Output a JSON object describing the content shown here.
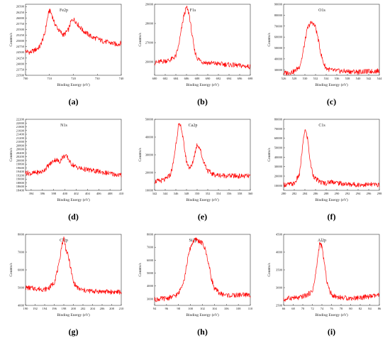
{
  "colors": {
    "line": "#ff0000",
    "axis": "#333333"
  },
  "chart_data": [
    {
      "id": "a",
      "panel_label": "(a)",
      "type": "line",
      "title": "Fe2p",
      "xlabel": "Binding Energy (eV)",
      "ylabel": "Counts/s",
      "xlim": [
        700,
        740
      ],
      "ylim": [
        23500,
        26600
      ],
      "xticks": [
        700,
        710,
        720,
        730,
        740
      ],
      "yticks": [
        23500,
        23750,
        24000,
        24250,
        24500,
        24750,
        25000,
        25250,
        25500,
        25750,
        26000,
        26250,
        26500
      ],
      "series": [
        {
          "x": [
            700,
            702,
            704,
            706,
            708,
            709,
            710,
            711,
            712,
            714,
            716,
            718,
            719,
            720,
            721,
            722,
            724,
            726,
            728,
            730,
            732,
            734,
            736,
            738,
            740
          ],
          "values": [
            24550,
            24500,
            24600,
            24750,
            25300,
            25900,
            26350,
            26150,
            25800,
            25450,
            25250,
            25500,
            25850,
            25950,
            25850,
            25700,
            25450,
            25300,
            25150,
            25100,
            25000,
            24950,
            24900,
            24850,
            24900
          ]
        }
      ]
    },
    {
      "id": "b",
      "panel_label": "(b)",
      "type": "line",
      "title": "F1s",
      "xlabel": "Binding Energy (eV)",
      "ylabel": "Counts/s",
      "xlim": [
        680,
        698
      ],
      "ylim": [
        25300,
        29000
      ],
      "xticks": [
        680,
        682,
        684,
        686,
        688,
        690,
        692,
        694,
        696,
        698
      ],
      "yticks": [
        26000,
        27000,
        28000,
        29000
      ],
      "series": [
        {
          "x": [
            680,
            681,
            682,
            683,
            684,
            684.5,
            685,
            685.5,
            686,
            686.5,
            687,
            687.5,
            688,
            689,
            690,
            692,
            694,
            696,
            698
          ],
          "values": [
            25950,
            26000,
            26050,
            26100,
            26300,
            26800,
            27600,
            28400,
            28850,
            28500,
            27500,
            26600,
            26200,
            26000,
            25950,
            25900,
            25850,
            25800,
            25750
          ]
        }
      ]
    },
    {
      "id": "c",
      "panel_label": "(c)",
      "type": "line",
      "title": "O1s",
      "xlabel": "Binding Energy (eV)",
      "ylabel": "Counts/s",
      "xlim": [
        526,
        544
      ],
      "ylim": [
        25000,
        90000
      ],
      "xticks": [
        526,
        528,
        530,
        532,
        534,
        536,
        538,
        540,
        542,
        544
      ],
      "yticks": [
        30000,
        40000,
        50000,
        60000,
        70000,
        80000,
        90000
      ],
      "series": [
        {
          "x": [
            526,
            527,
            528,
            529,
            529.5,
            530,
            530.5,
            531,
            531.5,
            532,
            532.5,
            533,
            533.5,
            534,
            535,
            536,
            538,
            540,
            542,
            544
          ],
          "values": [
            27000,
            27500,
            28500,
            33000,
            42000,
            56000,
            68000,
            72500,
            73000,
            69000,
            58000,
            45000,
            36000,
            31500,
            29500,
            29000,
            28500,
            28200,
            28500,
            29000
          ]
        }
      ]
    },
    {
      "id": "d",
      "panel_label": "(d)",
      "type": "line",
      "title": "N1s",
      "xlabel": "Binding Energy (eV)",
      "ylabel": "Counts/s",
      "xlim": [
        393,
        410
      ],
      "ylim": [
        18400,
        22200
      ],
      "xticks": [
        394,
        396,
        398,
        400,
        402,
        404,
        406,
        408,
        410
      ],
      "yticks": [
        18400,
        18600,
        18800,
        19000,
        19200,
        19400,
        19600,
        19800,
        20000,
        20200,
        20400,
        20600,
        20800,
        21000,
        21200,
        21400,
        21600,
        21800,
        22000,
        22200
      ],
      "series": [
        {
          "x": [
            393,
            394,
            395,
            396,
            397,
            398,
            398.5,
            399,
            399.5,
            400,
            400.5,
            401,
            402,
            403,
            404,
            405,
            406,
            407,
            408,
            409,
            410
          ],
          "values": [
            19350,
            19300,
            19350,
            19400,
            19700,
            20000,
            20050,
            19900,
            20150,
            20250,
            20150,
            19850,
            19650,
            19550,
            19500,
            19450,
            19400,
            19350,
            19300,
            19250,
            19200
          ]
        }
      ]
    },
    {
      "id": "e",
      "panel_label": "(e)",
      "type": "line",
      "title": "Ca2p",
      "xlabel": "Binding Energy (eV)",
      "ylabel": "Counts/s",
      "xlim": [
        342,
        360
      ],
      "ylim": [
        10000,
        50000
      ],
      "xticks": [
        342,
        344,
        346,
        348,
        350,
        352,
        354,
        356,
        358,
        360
      ],
      "yticks": [
        10000,
        20000,
        30000,
        40000,
        50000
      ],
      "series": [
        {
          "x": [
            342,
            343,
            344,
            345,
            345.5,
            346,
            346.5,
            347,
            347.5,
            348,
            348.5,
            349,
            349.5,
            350,
            350.5,
            351,
            352,
            353,
            354,
            356,
            358,
            360
          ],
          "values": [
            15000,
            15300,
            16000,
            19000,
            25000,
            36000,
            46500,
            46000,
            36000,
            26000,
            23000,
            23500,
            30000,
            36000,
            34000,
            28000,
            21000,
            19000,
            18500,
            18200,
            18000,
            18000
          ]
        }
      ]
    },
    {
      "id": "f",
      "panel_label": "(f)",
      "type": "line",
      "title": "C1s",
      "xlabel": "Binding Energy (eV)",
      "ylabel": "Counts/s",
      "xlim": [
        280,
        298
      ],
      "ylim": [
        5000,
        80000
      ],
      "xticks": [
        280,
        282,
        284,
        286,
        288,
        290,
        292,
        294,
        296,
        298
      ],
      "yticks": [
        10000,
        20000,
        30000,
        40000,
        50000,
        60000,
        70000,
        80000
      ],
      "series": [
        {
          "x": [
            280,
            281,
            282,
            283,
            283.5,
            284,
            284.5,
            285,
            285.5,
            286,
            287,
            288,
            289,
            290,
            291,
            292,
            294,
            296,
            298
          ],
          "values": [
            11000,
            11200,
            12000,
            22000,
            48000,
            70000,
            60000,
            35000,
            22000,
            17000,
            13500,
            12500,
            14500,
            13000,
            12000,
            11500,
            11000,
            11000,
            11000
          ]
        }
      ]
    },
    {
      "id": "g",
      "panel_label": "(g)",
      "type": "line",
      "title": "Cl2p",
      "xlabel": "Binding Energy (eV)",
      "ylabel": "Counts/s",
      "xlim": [
        190,
        210
      ],
      "ylim": [
        4000,
        8000
      ],
      "xticks": [
        190,
        192,
        194,
        196,
        198,
        200,
        202,
        204,
        206,
        208,
        210
      ],
      "yticks": [
        4000,
        5000,
        6000,
        7000,
        8000
      ],
      "series": [
        {
          "x": [
            190,
            192,
            194,
            195,
            196,
            197,
            197.5,
            198,
            198.5,
            199,
            199.5,
            200,
            201,
            202,
            204,
            206,
            208,
            210
          ],
          "values": [
            5000,
            4950,
            4900,
            5000,
            5300,
            6300,
            7300,
            7800,
            7100,
            6700,
            6000,
            5300,
            4950,
            4850,
            4800,
            4780,
            4760,
            4750
          ]
        }
      ]
    },
    {
      "id": "h",
      "panel_label": "(h)",
      "type": "line",
      "title": "Si2p",
      "xlabel": "Binding Energy (eV)",
      "ylabel": "Counts/s",
      "xlim": [
        94,
        110
      ],
      "ylim": [
        2500,
        8000
      ],
      "xticks": [
        94,
        96,
        98,
        100,
        102,
        104,
        106,
        108,
        110
      ],
      "yticks": [
        3000,
        4000,
        5000,
        6000,
        7000,
        8000
      ],
      "series": [
        {
          "x": [
            94,
            95,
            96,
            97,
            98,
            99,
            99.5,
            100,
            100.5,
            101,
            101.5,
            102,
            102.5,
            103,
            103.5,
            104,
            105,
            106,
            107,
            108,
            109,
            110
          ],
          "values": [
            2950,
            3000,
            3050,
            3150,
            3400,
            4600,
            6000,
            7000,
            7500,
            7600,
            7450,
            7300,
            6800,
            5800,
            4600,
            3800,
            3400,
            3300,
            3250,
            3300,
            3350,
            3250
          ]
        }
      ]
    },
    {
      "id": "i",
      "panel_label": "(i)",
      "type": "line",
      "title": "Al2p",
      "xlabel": "Binding Energy (eV)",
      "ylabel": "Counts/s",
      "xlim": [
        66,
        86
      ],
      "ylim": [
        2500,
        4500
      ],
      "xticks": [
        66,
        68,
        70,
        72,
        74,
        76,
        78,
        80,
        82,
        84,
        86
      ],
      "yticks": [
        2500,
        3000,
        3500,
        4000,
        4500
      ],
      "series": [
        {
          "x": [
            66,
            67,
            68,
            69,
            70,
            71,
            72,
            72.5,
            73,
            73.5,
            74,
            74.5,
            75,
            75.5,
            76,
            77,
            78,
            80,
            82,
            84,
            86
          ],
          "values": [
            2650,
            2700,
            2720,
            2700,
            2750,
            2800,
            2900,
            3200,
            3700,
            4250,
            4150,
            3700,
            3200,
            2950,
            2800,
            2750,
            2720,
            2700,
            2720,
            2750,
            2780
          ]
        }
      ]
    }
  ]
}
